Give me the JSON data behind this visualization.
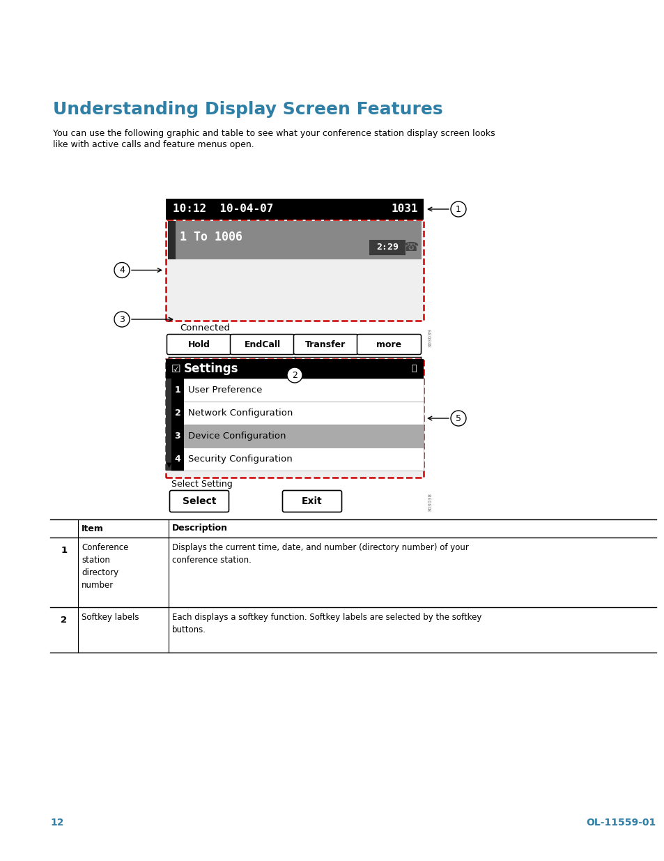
{
  "title": "Understanding Display Screen Features",
  "title_color": "#2e7ea6",
  "body_text_line1": "You can use the following graphic and table to see what your conference station display screen looks",
  "body_text_line2": "like with active calls and feature menus open.",
  "bg_color": "#ffffff",
  "page_number": "12",
  "doc_number": "OL-11559-01",
  "footer_color": "#2e7ea6",
  "screen1_header": "10:12  10-04-07",
  "screen1_number": "1031",
  "screen1_call": "1 To 1006",
  "screen1_timer": "2:29",
  "screen1_status": "Connected",
  "screen1_buttons": [
    "Hold",
    "EndCall",
    "Transfer",
    "more"
  ],
  "screen2_title": "Settings",
  "screen2_items": [
    [
      "1",
      "User Preference",
      false
    ],
    [
      "2",
      "Network Configuration",
      false
    ],
    [
      "3",
      "Device Configuration",
      true
    ],
    [
      "4",
      "Security Configuration",
      false
    ]
  ],
  "screen2_status": "Select Setting",
  "screen2_buttons": [
    "Select",
    "Exit"
  ],
  "table_row1_item": "1",
  "table_row1_label": "Conference\nstation\ndirectory\nnumber",
  "table_row1_desc": "Displays the current time, date, and number (directory number) of your\nconference station.",
  "table_row2_item": "2",
  "table_row2_label": "Softkey labels",
  "table_row2_desc": "Each displays a softkey function. Softkey labels are selected by the softkey\nbuttons."
}
